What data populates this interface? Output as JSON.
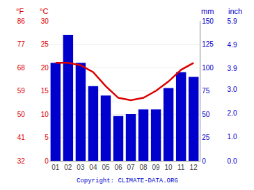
{
  "chart_data": {
    "type": "bar",
    "categories": [
      "01",
      "02",
      "03",
      "04",
      "05",
      "06",
      "07",
      "08",
      "09",
      "10",
      "11",
      "12"
    ],
    "series": [
      {
        "type": "bar",
        "color": "#0000cc",
        "values": [
          105,
          135,
          105,
          80,
          70,
          48,
          50,
          55,
          55,
          78,
          95,
          90
        ]
      },
      {
        "type": "line",
        "axis": "y2",
        "color": "#dd0000",
        "values": [
          21,
          21,
          20.5,
          19,
          16,
          13.5,
          13,
          13.5,
          15,
          17,
          19.5,
          21
        ]
      }
    ],
    "ylabel": "mm",
    "y2label": "°C",
    "y3label": "°F",
    "y4label": "inch",
    "ylim": [
      0,
      150
    ],
    "yticks": [
      0,
      25,
      50,
      75,
      100,
      125,
      150
    ],
    "y2lim": [
      0,
      30
    ],
    "y2ticks": [
      0,
      5,
      10,
      15,
      20,
      25,
      30
    ],
    "y3lim": [
      0,
      30
    ],
    "y3ticks": [
      {
        "value": 0,
        "label": "32"
      },
      {
        "value": 5,
        "label": "41"
      },
      {
        "value": 10,
        "label": "50"
      },
      {
        "value": 15,
        "label": "59"
      },
      {
        "value": 20,
        "label": "68"
      },
      {
        "value": 25,
        "label": "77"
      },
      {
        "value": 30,
        "label": "86"
      }
    ],
    "y4lim": [
      0,
      150
    ],
    "y4ticks": [
      {
        "value": 0,
        "label": "0.0"
      },
      {
        "value": 25.4,
        "label": "1.0"
      },
      {
        "value": 50.8,
        "label": "2.0"
      },
      {
        "value": 76.2,
        "label": "3.0"
      },
      {
        "value": 99.06,
        "label": "3.9"
      },
      {
        "value": 124.46,
        "label": "4.9"
      },
      {
        "value": 149.86,
        "label": "5.9"
      }
    ],
    "grid": true,
    "annotations": [
      "Copyright: CLIMATE-DATA.ORG"
    ]
  }
}
